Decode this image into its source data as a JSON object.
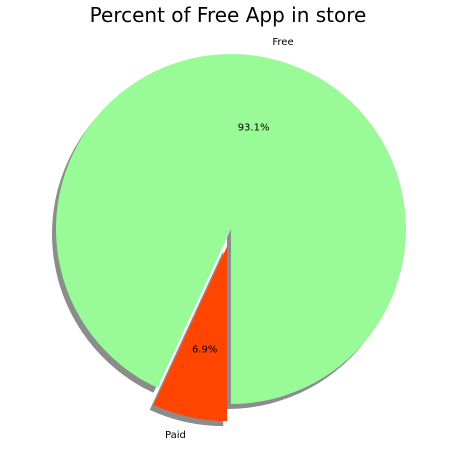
{
  "chart_data": {
    "type": "pie",
    "title": "Percent of Free App in store",
    "slices": [
      {
        "label": "Free",
        "value": 93.1,
        "pct_label": "93.1%",
        "color": "#98FB98",
        "explode": false
      },
      {
        "label": "Paid",
        "value": 6.9,
        "pct_label": "6.9%",
        "color": "#FF4500",
        "explode": true
      }
    ],
    "start_angle_deg": 270,
    "direction": "counterclockwise",
    "shadow": true
  }
}
